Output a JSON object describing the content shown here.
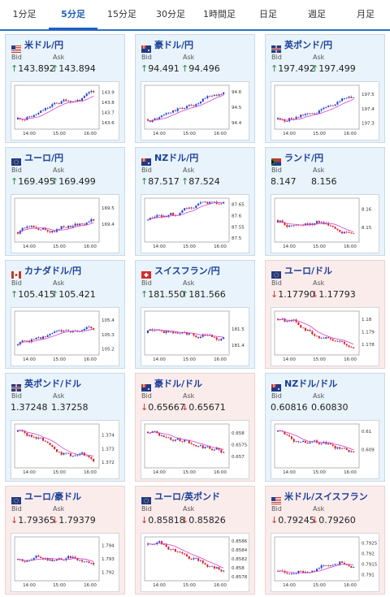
{
  "tabs": [
    "1分足",
    "5分足",
    "15分足",
    "30分足",
    "1時間足",
    "日足",
    "週足",
    "月足"
  ],
  "active_tab": 1,
  "labels": {
    "bid": "Bid",
    "ask": "Ask"
  },
  "colors": {
    "up_bg": "#e8f3fb",
    "down_bg": "#fbecec",
    "bull": "#1a3fd1",
    "bear": "#d81b1b",
    "ma": "#d23fd0",
    "title": "#1a3f99"
  },
  "cards": [
    {
      "name": "米ドル/円",
      "flag": "us",
      "bid": "143.892",
      "ask": "143.894",
      "dir": "up",
      "chart_data": {
        "type": "candlestick",
        "x_ticks": [
          "14:00",
          "15:00",
          "16:00"
        ],
        "y_ticks": [
          "143.9",
          "143.8",
          "143.7",
          "143.6"
        ],
        "ylim": [
          143.55,
          143.95
        ],
        "trend": "up"
      }
    },
    {
      "name": "豪ドル/円",
      "flag": "au",
      "bid": "94.491",
      "ask": "94.496",
      "dir": "up",
      "chart_data": {
        "type": "candlestick",
        "x_ticks": [
          "14:00",
          "15:00",
          "16:00"
        ],
        "y_ticks": [
          "94.6",
          "94.5",
          "94.4"
        ],
        "ylim": [
          94.37,
          94.63
        ],
        "trend": "up"
      }
    },
    {
      "name": "英ポンド/円",
      "flag": "gb",
      "bid": "197.492",
      "ask": "197.499",
      "dir": "up",
      "chart_data": {
        "type": "candlestick",
        "x_ticks": [
          "14:00",
          "15:00",
          "16:00"
        ],
        "y_ticks": [
          "197.5",
          "197.4",
          "197.3"
        ],
        "ylim": [
          197.27,
          197.55
        ],
        "trend": "up"
      }
    },
    {
      "name": "ユーロ/円",
      "flag": "eu",
      "bid": "169.495",
      "ask": "169.499",
      "dir": "up",
      "chart_data": {
        "type": "candlestick",
        "x_ticks": [
          "14:00",
          "15:00",
          "16:00"
        ],
        "y_ticks": [
          "169.5",
          "169.4"
        ],
        "ylim": [
          169.3,
          169.55
        ],
        "trend": "up"
      }
    },
    {
      "name": "NZドル/円",
      "flag": "nz",
      "bid": "87.517",
      "ask": "87.524",
      "dir": "up",
      "chart_data": {
        "type": "candlestick",
        "x_ticks": [
          "14:00",
          "15:00",
          "16:00"
        ],
        "y_ticks": [
          "87.65",
          "87.6",
          "87.55",
          "87.5"
        ],
        "ylim": [
          87.49,
          87.67
        ],
        "trend": "flat"
      }
    },
    {
      "name": "ランド/円",
      "flag": "za",
      "bid": "8.147",
      "ask": "8.156",
      "dir": "none",
      "chart_data": {
        "type": "candlestick",
        "x_ticks": [
          "14:00",
          "15:00",
          "16:00"
        ],
        "y_ticks": [
          "8.16",
          "8.15"
        ],
        "ylim": [
          8.143,
          8.165
        ],
        "trend": "flat"
      }
    },
    {
      "name": "カナダドル/円",
      "flag": "ca",
      "bid": "105.415",
      "ask": "105.421",
      "dir": "up",
      "chart_data": {
        "type": "candlestick",
        "x_ticks": [
          "14:00",
          "15:00",
          "16:00"
        ],
        "y_ticks": [
          "105.4",
          "105.3",
          "105.2"
        ],
        "ylim": [
          105.17,
          105.45
        ],
        "trend": "up"
      }
    },
    {
      "name": "スイスフラン/円",
      "flag": "ch",
      "bid": "181.550",
      "ask": "181.566",
      "dir": "up",
      "chart_data": {
        "type": "candlestick",
        "x_ticks": [
          "14:00",
          "15:00",
          "16:00"
        ],
        "y_ticks": [
          "181.5",
          "181.4"
        ],
        "ylim": [
          181.35,
          181.6
        ],
        "trend": "flat"
      }
    },
    {
      "name": "ユーロ/ドル",
      "flag": "eu",
      "bid": "1.17790",
      "ask": "1.17793",
      "dir": "down",
      "chart_data": {
        "type": "candlestick",
        "x_ticks": [
          "14:00",
          "15:00",
          "16:00"
        ],
        "y_ticks": [
          "1.18",
          "1.179",
          "1.178"
        ],
        "ylim": [
          1.1773,
          1.1805
        ],
        "trend": "down"
      }
    },
    {
      "name": "英ポンド/ドル",
      "flag": "gb",
      "bid": "1.37248",
      "ask": "1.37258",
      "dir": "none",
      "chart_data": {
        "type": "candlestick",
        "x_ticks": [
          "14:00",
          "15:00",
          "16:00"
        ],
        "y_ticks": [
          "1.374",
          "1.373",
          "1.372"
        ],
        "ylim": [
          1.3717,
          1.3747
        ],
        "trend": "down"
      }
    },
    {
      "name": "豪ドル/ドル",
      "flag": "au",
      "bid": "0.65667",
      "ask": "0.65671",
      "dir": "down",
      "chart_data": {
        "type": "candlestick",
        "x_ticks": [
          "14:00",
          "15:00",
          "16:00"
        ],
        "y_ticks": [
          "0.658",
          "0.6575",
          "0.657"
        ],
        "ylim": [
          0.6566,
          0.6583
        ],
        "trend": "down"
      }
    },
    {
      "name": "NZドル/ドル",
      "flag": "nz",
      "bid": "0.60816",
      "ask": "0.60830",
      "dir": "none",
      "chart_data": {
        "type": "candlestick",
        "x_ticks": [
          "14:00",
          "15:00",
          "16:00"
        ],
        "y_ticks": [
          "0.61",
          "0.609"
        ],
        "ylim": [
          0.6081,
          0.6103
        ],
        "trend": "down"
      }
    },
    {
      "name": "ユーロ/豪ドル",
      "flag": "eu",
      "bid": "1.79365",
      "ask": "1.79379",
      "dir": "down",
      "chart_data": {
        "type": "candlestick",
        "x_ticks": [
          "14:00",
          "15:00",
          "16:00"
        ],
        "y_ticks": [
          "1.794",
          "1.793",
          "1.792"
        ],
        "ylim": [
          1.7915,
          1.7945
        ],
        "trend": "flat"
      }
    },
    {
      "name": "ユーロ/英ポンド",
      "flag": "eu",
      "bid": "0.85818",
      "ask": "0.85826",
      "dir": "down",
      "chart_data": {
        "type": "candlestick",
        "x_ticks": [
          "14:00",
          "15:00",
          "16:00"
        ],
        "y_ticks": [
          "0.8586",
          "0.8584",
          "0.8582",
          "0.858",
          "0.8578"
        ],
        "ylim": [
          0.85775,
          0.85865
        ],
        "trend": "down"
      }
    },
    {
      "name": "米ドル/スイスフラン",
      "flag": "us",
      "bid": "0.79245",
      "ask": "0.79260",
      "dir": "down",
      "chart_data": {
        "type": "candlestick",
        "x_ticks": [
          "14:00",
          "15:00",
          "16:00"
        ],
        "y_ticks": [
          "0.7925",
          "0.792",
          "0.7915",
          "0.791"
        ],
        "ylim": [
          0.7908,
          0.7927
        ],
        "trend": "up"
      }
    }
  ]
}
